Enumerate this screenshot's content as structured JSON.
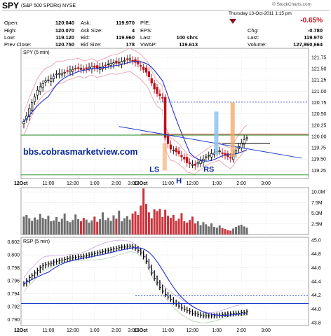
{
  "header": {
    "symbol": "SPY",
    "name": "(S&P 500 SPDRs)",
    "exchange": "NYSE",
    "copyright": "© StockCharts.com",
    "date": "Thursday 13-Oct-2011 1:15 pm",
    "pct_change": "-0.65%",
    "quote_left": [
      {
        "label": "Open:",
        "value": "120.040"
      },
      {
        "label": "High:",
        "value": "120.070"
      },
      {
        "label": "Low:",
        "value": "119.120"
      },
      {
        "label": "Prev Close:",
        "value": "120.750"
      }
    ],
    "quote_mid": [
      {
        "label": "Ask:",
        "value": "119.970"
      },
      {
        "label": "Ask Size:",
        "value": "4"
      },
      {
        "label": "Bid:",
        "value": "119.960"
      },
      {
        "label": "Bid Size:",
        "value": "178"
      }
    ],
    "quote_right": [
      {
        "label": "P/E:",
        "value": ""
      },
      {
        "label": "EPS:",
        "value": ""
      },
      {
        "label": "Last:",
        "value": "100 shrs"
      },
      {
        "label": "VWAP:",
        "value": "119.613"
      }
    ],
    "quote_far": [
      {
        "label": "Chg:",
        "value": "-0.780"
      },
      {
        "label": "Last:",
        "value": "119.970"
      },
      {
        "label": "Volume:",
        "value": "127,860,664"
      }
    ]
  },
  "colors": {
    "up": "#000000",
    "down": "#c0101a",
    "ma": "#2030c8",
    "green": "#1a8a1a",
    "red": "#cc2222",
    "blue": "#1a3ccc",
    "bb": "#e8a8b8",
    "orange": "#f4a460",
    "lightblue": "#8ec4ee"
  },
  "chart_data": [
    {
      "type": "line",
      "title": "SPY (5 min)",
      "yticks": [
        "121.75",
        "121.50",
        "121.25",
        "121.00",
        "120.75",
        "120.50",
        "120.25",
        "120.00",
        "119.75",
        "119.50",
        "119.25"
      ],
      "ylim": [
        119.07,
        121.95
      ],
      "x_ticks": [
        "12Oct",
        "11:00",
        "12:00",
        "1:00",
        "2:00",
        "3:00",
        "13Oct",
        "11:00",
        "12:00",
        "1:00",
        "2:00",
        "3:00"
      ],
      "series": [
        {
          "values": [
            120.33,
            120.45,
            120.62,
            120.75,
            120.88,
            121.02,
            121.1,
            121.17,
            121.23,
            121.25,
            121.28,
            121.33,
            121.38,
            121.4,
            121.4,
            121.42,
            121.45,
            121.47,
            121.48,
            121.5,
            121.52,
            121.51,
            121.48,
            121.5,
            121.53,
            121.55,
            121.53,
            121.5,
            121.53,
            121.55,
            121.57,
            121.6,
            121.62,
            121.63,
            121.62,
            121.64,
            121.66,
            121.68,
            121.7,
            121.72,
            121.68,
            121.64,
            121.6,
            121.55,
            121.48,
            121.42,
            121.32,
            121.18,
            121.05,
            120.95,
            120.9,
            120.85,
            119.98,
            119.84,
            119.72,
            119.7,
            119.66,
            119.62,
            119.55,
            119.5,
            119.42,
            119.4,
            119.38,
            119.36,
            119.42,
            119.46,
            119.5,
            119.55,
            119.58,
            119.62,
            119.63,
            119.66,
            119.68,
            119.62,
            119.58,
            119.55,
            119.52,
            119.6,
            119.7,
            119.78,
            119.85,
            119.93,
            119.97
          ]
        }
      ],
      "annotations": [
        "bbs.cobrasmarketview.com",
        "LS",
        "H",
        "RS"
      ]
    },
    {
      "type": "bar",
      "title": "",
      "yticks": [
        "10.0M",
        "7.5M",
        "5.0M",
        "2.5M"
      ],
      "ylim": [
        0,
        11.0
      ],
      "x_ticks": [
        "12Oct",
        "11:00",
        "12:00",
        "1:00",
        "2:00",
        "3:00",
        "13Oct",
        "11:00",
        "12:00",
        "1:00",
        "2:00",
        "3:00"
      ],
      "values": [
        4.2,
        4.6,
        3.8,
        3.2,
        4.0,
        3.5,
        4.8,
        3.9,
        3.6,
        4.4,
        3.1,
        3.3,
        4.1,
        3.0,
        3.7,
        4.9,
        3.2,
        2.9,
        3.4,
        4.7,
        3.6,
        3.1,
        3.9,
        3.5,
        2.8,
        3.3,
        4.2,
        3.0,
        3.6,
        5.2,
        3.4,
        3.9,
        3.2,
        4.5,
        3.7,
        5.6,
        3.1,
        3.8,
        4.3,
        3.5,
        4.9,
        5.4,
        4.6,
        6.8,
        10.8,
        7.2,
        5.2,
        3.8,
        5.9,
        5.5,
        6.0,
        4.1,
        5.8,
        4.4,
        3.9,
        4.6,
        3.2,
        3.7,
        5.0,
        3.1,
        2.8,
        3.4,
        4.2,
        2.6,
        3.1,
        2.2,
        2.9,
        2.4,
        1.9,
        2.6,
        1.8,
        1.6,
        2.1,
        1.5,
        1.3,
        1.0,
        0.9,
        1.4,
        1.8,
        2.1,
        2.3,
        1.9,
        1.6
      ]
    },
    {
      "type": "line",
      "title": "RSP (5 min)",
      "yticks_left": [
        "0.802",
        "0.800",
        "0.798",
        "0.796",
        "0.794",
        "0.792",
        "0.790"
      ],
      "yticks_right": [
        "45.0",
        "44.8",
        "44.6",
        "44.4",
        "44.2",
        "44.0",
        "43.8"
      ],
      "ylim": [
        0.7891,
        0.8027
      ],
      "x_ticks": [
        "12Oct",
        "11:00",
        "12:00",
        "1:00",
        "2:00",
        "3:00",
        "13Oct",
        "11:00",
        "12:00",
        "1:00",
        "2:00",
        "3:00"
      ],
      "series": [
        {
          "values": [
            0.7955,
            0.796,
            0.7965,
            0.7968,
            0.7972,
            0.7976,
            0.798,
            0.7983,
            0.7985,
            0.7986,
            0.7987,
            0.7989,
            0.799,
            0.7991,
            0.7992,
            0.7993,
            0.7994,
            0.7995,
            0.7996,
            0.7996,
            0.7997,
            0.7997,
            0.7998,
            0.7999,
            0.8,
            0.8001,
            0.8002,
            0.8003,
            0.8004,
            0.8005,
            0.8006,
            0.8007,
            0.8008,
            0.8009,
            0.801,
            0.8011,
            0.8012,
            0.8012,
            0.8013,
            0.8013,
            0.8012,
            0.801,
            0.8007,
            0.8003,
            0.7997,
            0.799,
            0.7981,
            0.7972,
            0.7964,
            0.7957,
            0.795,
            0.7944,
            0.7939,
            0.7935,
            0.7931,
            0.7927,
            0.7924,
            0.7921,
            0.7918,
            0.7916,
            0.7914,
            0.7912,
            0.791,
            0.7909,
            0.7908,
            0.7907,
            0.7906,
            0.7906,
            0.7906,
            0.7906,
            0.7906,
            0.7907,
            0.7907,
            0.7908,
            0.7908,
            0.7909,
            0.7909,
            0.791,
            0.791,
            0.791,
            0.7911,
            0.7911,
            0.7912
          ]
        }
      ]
    }
  ]
}
